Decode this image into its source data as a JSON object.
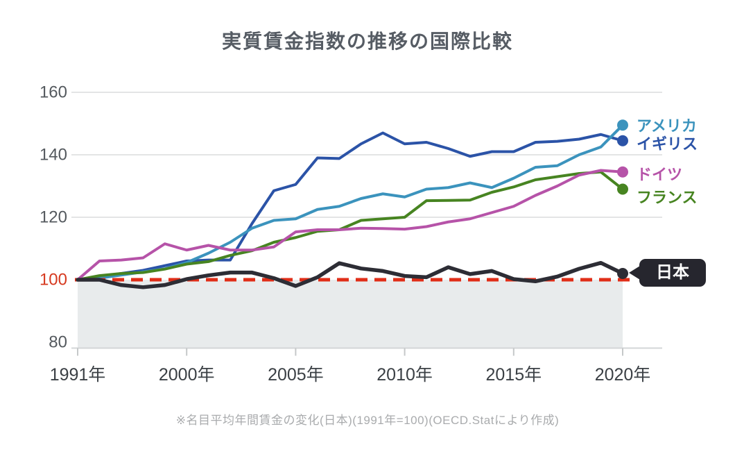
{
  "title": "実質賃金指数の推移の国際比較",
  "footnote": "※名目平均年間賃金の変化(日本)(1991年=100)(OECD.Statにより作成)",
  "colors": {
    "title": "#565c64",
    "footnote": "#a9abad",
    "grid": "#e3e4e5",
    "axis": "#d3d6d7",
    "tick": "#c5c8c9",
    "area_below_baseline": "#e8ebec",
    "baseline_dashed": "#e02e18",
    "y_label": "#54595e",
    "y_label_baseline": "#d6391f",
    "x_label": "#3b4045",
    "japan_badge_bg": "#26262e",
    "japan_badge_text": "#ffffff"
  },
  "chart_data": {
    "type": "line",
    "title": "実質賃金指数の推移の国際比較",
    "xlabel": "",
    "ylabel": "",
    "baseline": 100,
    "ylim": [
      78,
      163
    ],
    "y_ticks": [
      160,
      140,
      120,
      100,
      80
    ],
    "grid": "horizontal gridlines at 120/140/160 only; red dashed line at 100; gray band below 100",
    "legend_position": "right end of lines, colored dots at last point",
    "x": [
      1991,
      1996,
      1997,
      1998,
      1999,
      2000,
      2001,
      2002,
      2003,
      2004,
      2005,
      2006,
      2007,
      2008,
      2009,
      2010,
      2011,
      2012,
      2013,
      2014,
      2015,
      2016,
      2017,
      2018,
      2019,
      2020
    ],
    "x_tick_labels": [
      "1991年",
      "2000年",
      "2005年",
      "2010年",
      "2015年",
      "2020年"
    ],
    "x_tick_years": [
      1991,
      2000,
      2005,
      2010,
      2015,
      2020
    ],
    "series": [
      {
        "name": "アメリカ",
        "color": "#3b93bd",
        "values": [
          100,
          100.5,
          101.5,
          102.5,
          103.5,
          105.5,
          108.5,
          112,
          116.5,
          119,
          119.5,
          122.5,
          123.5,
          126,
          127.5,
          126.5,
          129,
          129.5,
          131,
          129.5,
          132.5,
          136,
          136.5,
          140,
          142.5,
          149.5
        ]
      },
      {
        "name": "イギリス",
        "color": "#2b53a7",
        "values": [
          100,
          101,
          102,
          103,
          104.5,
          106,
          106.3,
          106.3,
          118,
          128.5,
          130.5,
          139,
          138.8,
          143.5,
          147,
          143.5,
          144,
          142,
          139.5,
          141,
          141,
          144,
          144.3,
          145,
          146.5,
          144.5
        ]
      },
      {
        "name": "ドイツ",
        "color": "#b653a8",
        "values": [
          100,
          106,
          106.3,
          107,
          111.5,
          109.5,
          111,
          109.5,
          109.5,
          110.5,
          115.3,
          116,
          116,
          116.5,
          116.4,
          116.2,
          117,
          118.5,
          119.5,
          121.5,
          123.5,
          127,
          130,
          133.5,
          135,
          134.5
        ]
      },
      {
        "name": "フランス",
        "color": "#478421",
        "values": [
          100,
          101.3,
          102,
          102.3,
          103.4,
          105,
          105.8,
          107.8,
          109.3,
          112,
          113.5,
          115.5,
          116,
          119,
          119.5,
          120,
          125.3,
          125.4,
          125.5,
          128,
          129.7,
          132,
          133,
          134,
          134.5,
          129
        ]
      },
      {
        "name": "日本",
        "color": "#2d2d35",
        "values": [
          100,
          100,
          98.3,
          97.6,
          98.3,
          100.2,
          101.4,
          102.3,
          102.3,
          100.5,
          98,
          100.8,
          105.3,
          103.6,
          102.8,
          101.2,
          100.8,
          104,
          101.8,
          102.8,
          100.2,
          99.5,
          101,
          103.5,
          105.4,
          102
        ]
      }
    ]
  }
}
